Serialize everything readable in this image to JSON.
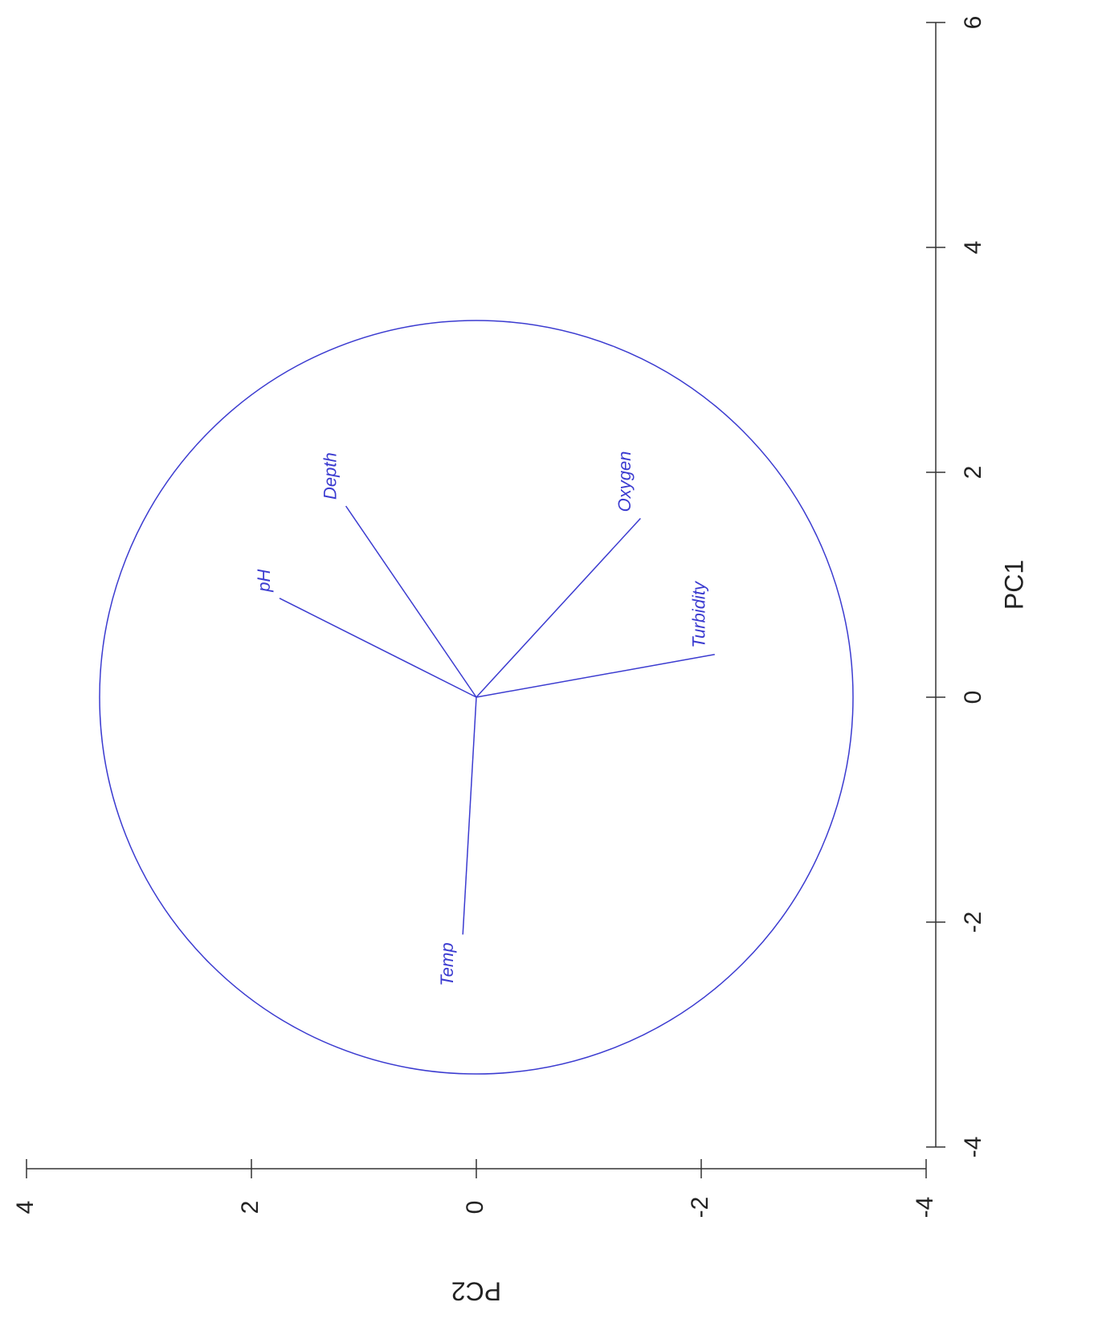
{
  "chart_data": {
    "type": "biplot",
    "x_label": "PC1",
    "y_label": "PC2",
    "xlim": [
      -4,
      6
    ],
    "xticks": [
      -4,
      -2,
      0,
      2,
      4,
      6
    ],
    "ylim": [
      -4,
      4
    ],
    "yticks": [
      -4,
      -2,
      0,
      2,
      4
    ],
    "color": "#3b3bd0",
    "circle_radius": 3.35,
    "series": [
      {
        "name": "pH",
        "x": [
          0.88
        ],
        "values": [
          1.75
        ]
      },
      {
        "name": "Depth",
        "x": [
          1.7
        ],
        "values": [
          1.16
        ]
      },
      {
        "name": "Oxygen",
        "x": [
          1.59
        ],
        "values": [
          -1.46
        ]
      },
      {
        "name": "Turbidity",
        "x": [
          0.38
        ],
        "values": [
          -2.12
        ]
      },
      {
        "name": "Temp",
        "x": [
          -2.11
        ],
        "values": [
          0.12
        ]
      }
    ]
  }
}
